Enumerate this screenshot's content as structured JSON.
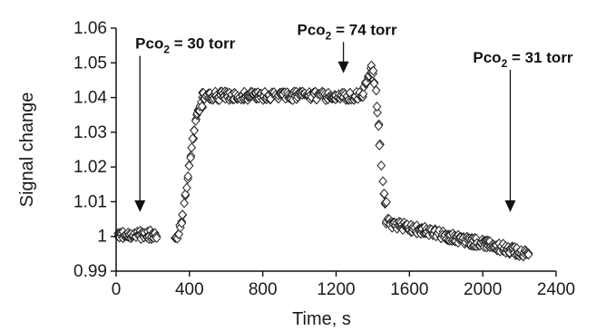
{
  "chart_data": {
    "type": "scatter",
    "title": "",
    "xlabel": "Time, s",
    "ylabel": "Signal change",
    "xlim": [
      0,
      2400
    ],
    "ylim": [
      0.99,
      1.06
    ],
    "x_ticks": [
      "0",
      "400",
      "800",
      "1200",
      "1600",
      "2000",
      "2400"
    ],
    "y_ticks": [
      "0.99",
      "1",
      "1.01",
      "1.02",
      "1.03",
      "1.04",
      "1.05",
      "1.06"
    ],
    "x_tick_values": [
      0,
      400,
      800,
      1200,
      1600,
      2000,
      2400
    ],
    "y_tick_values": [
      0.99,
      1.0,
      1.01,
      1.02,
      1.03,
      1.04,
      1.05,
      1.06
    ],
    "grid": false,
    "marker": "diamond",
    "annotations": [
      {
        "main": "Pco",
        "sub": "2",
        "rest": " = 30 torr",
        "x": 130,
        "arrow_top": 1.052,
        "arrow_bottom": 1.007
      },
      {
        "main": "Pco",
        "sub": "2",
        "rest": " = 74 torr",
        "x": 1240,
        "arrow_top": 1.056,
        "arrow_bottom": 1.047
      },
      {
        "main": "Pco",
        "sub": "2",
        "rest": " = 31 torr",
        "x": 2150,
        "arrow_top": 1.048,
        "arrow_bottom": 1.007
      }
    ],
    "segments": [
      {
        "label": "baseline",
        "x_start": 10,
        "x_end": 220,
        "y": 1.0005,
        "spread": 0.0025
      },
      {
        "label": "rise",
        "x_start": 320,
        "x_end": 470,
        "y_start": 0.9995,
        "y_end": 1.038,
        "spread": 0.002
      },
      {
        "label": "plateau",
        "x_start": 470,
        "x_end": 1340,
        "y": 1.0405,
        "spread": 0.0025
      },
      {
        "label": "overshoot",
        "x_start": 1340,
        "x_end": 1395,
        "y_start": 1.04,
        "y_end": 1.049,
        "spread": 0.002
      },
      {
        "label": "fall",
        "x_start": 1395,
        "x_end": 1475,
        "y_start": 1.048,
        "y_end": 1.009,
        "spread": 0.002
      },
      {
        "label": "post",
        "x_start": 1475,
        "x_end": 2250,
        "y_start": 1.004,
        "y_end": 0.995,
        "spread": 0.0025
      }
    ]
  }
}
